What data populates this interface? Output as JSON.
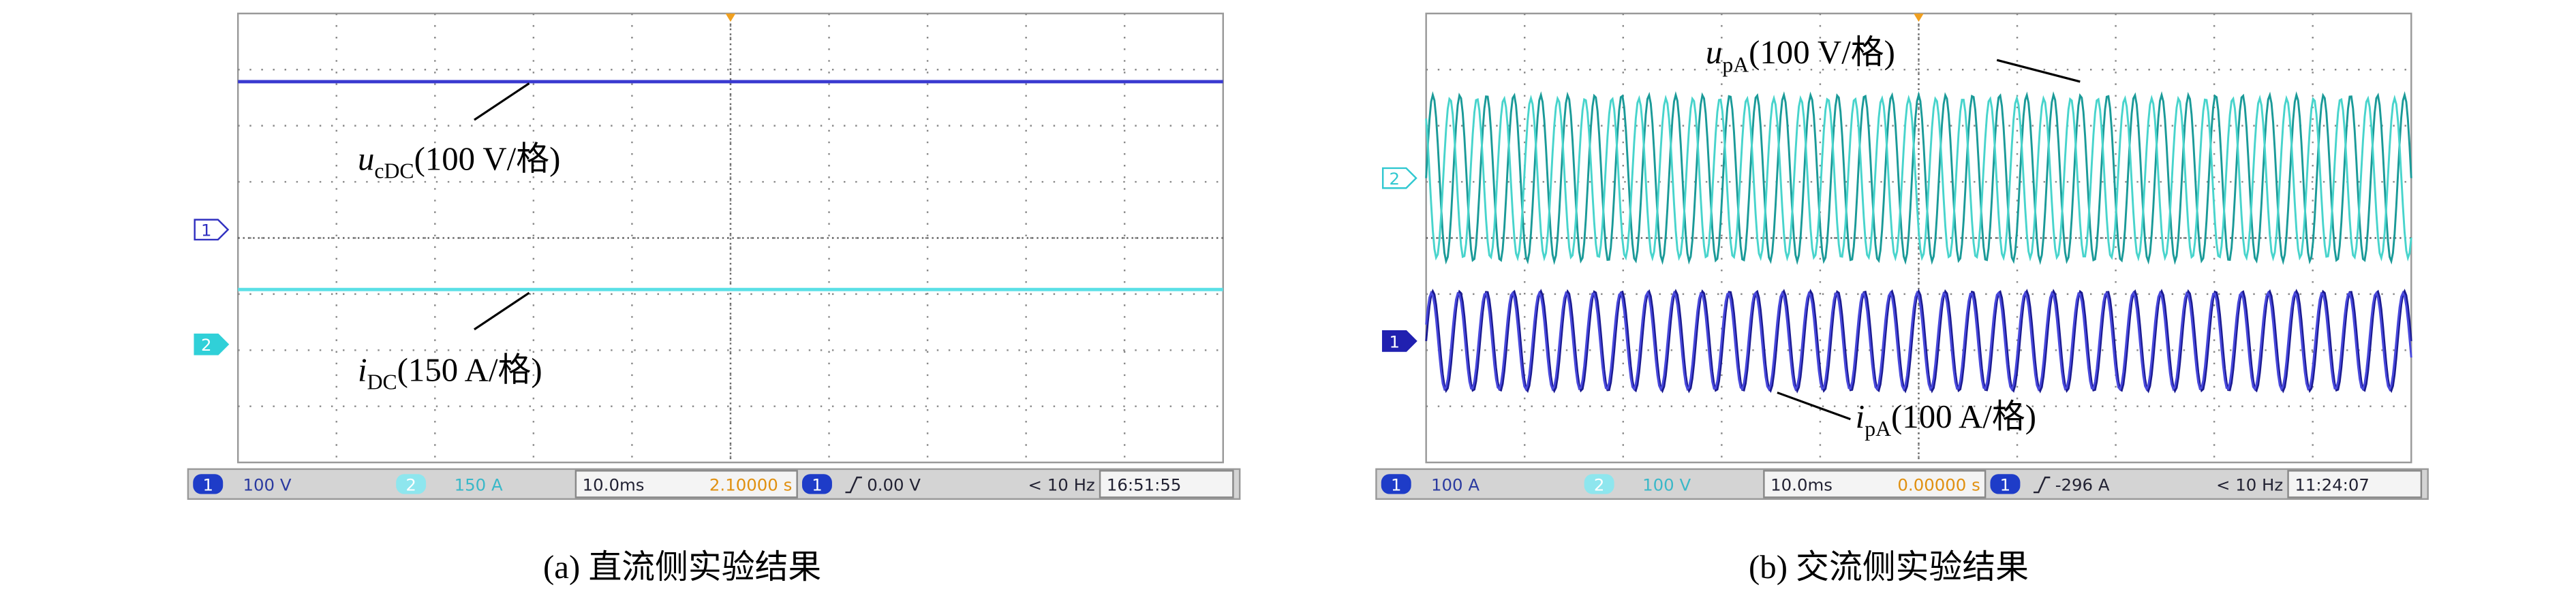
{
  "panels": [
    {
      "caption": "(a) 直流侧实验结果",
      "markers": [
        "1",
        "2"
      ],
      "labels": [
        {
          "var": "u",
          "sub": "cDC",
          "unit": "(100 V/格)"
        },
        {
          "var": "i",
          "sub": "DC",
          "unit": "(150 A/格)"
        }
      ],
      "status": {
        "ch1": "1",
        "ch1_scale": "100 V",
        "ch2": "2",
        "ch2_scale": "150 A",
        "timebase": "10.0ms",
        "position": "2.10000 s",
        "trig_ch": "1",
        "trig_level": "0.00 V",
        "freq": "< 10 Hz",
        "clock": "16:51:55"
      }
    },
    {
      "caption": "(b) 交流侧实验结果",
      "markers": [
        "2",
        "1"
      ],
      "labels": [
        {
          "var": "u",
          "sub": "pA",
          "unit": "(100 V/格)"
        },
        {
          "var": "i",
          "sub": "pA",
          "unit": "(100 A/格)"
        }
      ],
      "status": {
        "ch1": "1",
        "ch1_scale": "100 A",
        "ch2": "2",
        "ch2_scale": "100 V",
        "timebase": "10.0ms",
        "position": "0.00000 s",
        "trig_ch": "1",
        "trig_level": "-296 A",
        "freq": "< 10 Hz",
        "clock": "11:24:07"
      }
    }
  ]
}
